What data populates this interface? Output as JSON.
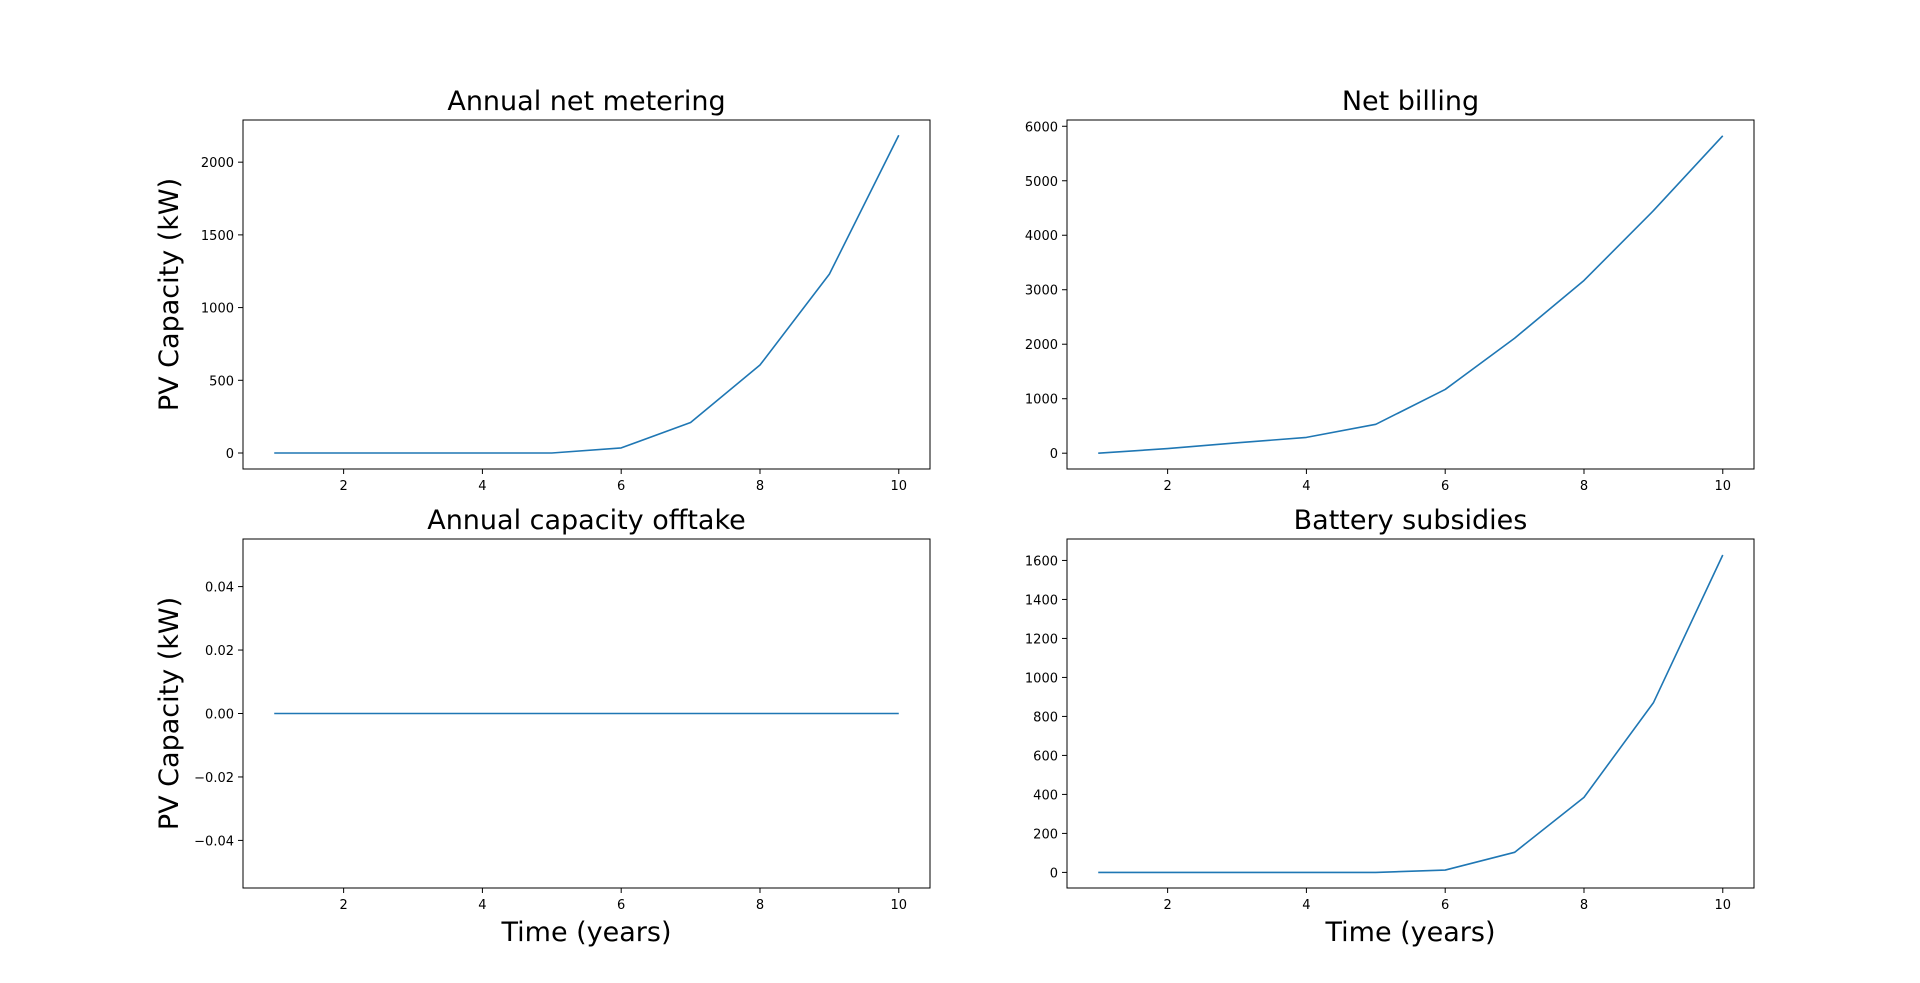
{
  "chart_data": [
    {
      "type": "line",
      "title": "Annual net metering",
      "xlabel": "",
      "ylabel": "PV Capacity (kW)",
      "x": [
        1,
        2,
        3,
        4,
        5,
        6,
        7,
        8,
        9,
        10
      ],
      "series": [
        {
          "values": [
            0,
            0,
            0,
            0,
            0,
            35,
            210,
            605,
            1230,
            2185
          ]
        }
      ],
      "xlim": [
        0.55,
        10.45
      ],
      "ylim": [
        -110,
        2290
      ],
      "xticks": [
        2,
        4,
        6,
        8,
        10
      ],
      "yticks": [
        0,
        500,
        1000,
        1500,
        2000
      ],
      "tick_decimals": 0,
      "grid": false,
      "color": "#1f77b4"
    },
    {
      "type": "line",
      "title": "Net billing",
      "xlabel": "",
      "ylabel": "",
      "x": [
        1,
        2,
        3,
        4,
        5,
        6,
        7,
        8,
        9,
        10
      ],
      "series": [
        {
          "values": [
            0,
            85,
            190,
            290,
            530,
            1170,
            2110,
            3170,
            4450,
            5825
          ]
        }
      ],
      "xlim": [
        0.55,
        10.45
      ],
      "ylim": [
        -290,
        6115
      ],
      "xticks": [
        2,
        4,
        6,
        8,
        10
      ],
      "yticks": [
        0,
        1000,
        2000,
        3000,
        4000,
        5000,
        6000
      ],
      "tick_decimals": 0,
      "grid": false,
      "color": "#1f77b4"
    },
    {
      "type": "line",
      "title": "Annual capacity offtake",
      "xlabel": "Time (years)",
      "ylabel": "PV Capacity (kW)",
      "x": [
        1,
        2,
        3,
        4,
        5,
        6,
        7,
        8,
        9,
        10
      ],
      "series": [
        {
          "values": [
            0,
            0,
            0,
            0,
            0,
            0,
            0,
            0,
            0,
            0
          ]
        }
      ],
      "xlim": [
        0.55,
        10.45
      ],
      "ylim": [
        -0.055,
        0.055
      ],
      "xticks": [
        2,
        4,
        6,
        8,
        10
      ],
      "yticks": [
        -0.04,
        -0.02,
        0.0,
        0.02,
        0.04
      ],
      "tick_decimals": 2,
      "grid": false,
      "color": "#1f77b4"
    },
    {
      "type": "line",
      "title": "Battery subsidies",
      "xlabel": "Time (years)",
      "ylabel": "",
      "x": [
        1,
        2,
        3,
        4,
        5,
        6,
        7,
        8,
        9,
        10
      ],
      "series": [
        {
          "values": [
            0,
            0,
            0,
            0,
            0,
            12,
            103,
            385,
            870,
            1628
          ]
        }
      ],
      "xlim": [
        0.55,
        10.45
      ],
      "ylim": [
        -80,
        1710
      ],
      "xticks": [
        2,
        4,
        6,
        8,
        10
      ],
      "yticks": [
        0,
        200,
        400,
        600,
        800,
        1000,
        1200,
        1400,
        1600
      ],
      "tick_decimals": 0,
      "grid": false,
      "color": "#1f77b4"
    }
  ]
}
